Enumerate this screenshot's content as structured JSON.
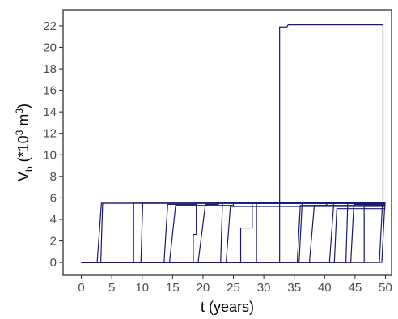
{
  "colors": {
    "series": "#1a1a6e",
    "axis": "#333333",
    "tick_text": "#4d4d4d"
  },
  "chart_data": {
    "type": "line",
    "xlabel": "t (years)",
    "ylabel": {
      "main": "V",
      "sub": "b",
      "rest_prefix": " (*10",
      "sup": "3",
      "rest_mid": " m",
      "sup2": "3",
      "rest_suffix": ")"
    },
    "xlim": [
      -3,
      51
    ],
    "ylim": [
      -1.2,
      23.5
    ],
    "xticks": [
      0,
      5,
      10,
      15,
      20,
      25,
      30,
      35,
      40,
      45,
      50
    ],
    "yticks": [
      0,
      2,
      4,
      6,
      8,
      10,
      12,
      14,
      16,
      18,
      20,
      22
    ],
    "grid": false,
    "legend": "none",
    "series": [
      {
        "x": [
          0,
          3.2,
          3.5,
          8.5,
          8.5,
          50
        ],
        "y": [
          0,
          0,
          5.5,
          5.5,
          5.6,
          5.6
        ]
      },
      {
        "x": [
          0,
          2.6,
          3.3,
          13.5,
          14.0,
          50
        ],
        "y": [
          0,
          0,
          5.5,
          5.5,
          5.5,
          5.5
        ]
      },
      {
        "x": [
          0,
          8.6,
          8.6,
          9.0,
          9.0,
          18.5,
          18.5,
          50
        ],
        "y": [
          0,
          0,
          5.5,
          5.5,
          5.5,
          5.5,
          5.6,
          5.6
        ]
      },
      {
        "x": [
          0,
          9.8,
          10.1,
          20.2,
          20.7,
          50
        ],
        "y": [
          0,
          0,
          5.5,
          5.5,
          5.5,
          5.5
        ]
      },
      {
        "x": [
          0,
          13.6,
          14.2,
          18.8,
          19.0,
          50
        ],
        "y": [
          0,
          0,
          5.4,
          5.4,
          5.5,
          5.5
        ]
      },
      {
        "x": [
          0,
          14.5,
          15.5,
          25.0,
          25.0,
          50
        ],
        "y": [
          0,
          0,
          5.3,
          5.3,
          5.5,
          5.5
        ]
      },
      {
        "x": [
          0,
          18.4,
          18.4,
          18.9,
          18.9,
          50
        ],
        "y": [
          0,
          0,
          2.6,
          2.6,
          5.5,
          5.5
        ]
      },
      {
        "x": [
          0,
          19.2,
          20.4,
          22.5,
          22.7,
          50
        ],
        "y": [
          0,
          0,
          5.4,
          5.4,
          5.5,
          5.5
        ]
      },
      {
        "x": [
          0,
          22.9,
          23.2,
          50
        ],
        "y": [
          0,
          0,
          5.5,
          5.5
        ]
      },
      {
        "x": [
          0,
          23.8,
          24.5,
          50
        ],
        "y": [
          0,
          0,
          5.2,
          5.2
        ]
      },
      {
        "x": [
          0,
          26.2,
          26.2,
          28.1,
          28.1,
          28.4,
          50
        ],
        "y": [
          0,
          0,
          3.2,
          3.2,
          5.5,
          5.5,
          5.5
        ]
      },
      {
        "x": [
          0,
          28.8,
          28.8,
          32.5,
          32.5,
          50
        ],
        "y": [
          0,
          0,
          5.5,
          5.5,
          5.6,
          5.6
        ]
      },
      {
        "x": [
          0,
          32.6,
          32.6,
          33.8,
          34.0,
          49.6,
          49.6,
          50
        ],
        "y": [
          0,
          0,
          21.9,
          21.9,
          22.1,
          22.1,
          5.5,
          5.5
        ]
      },
      {
        "x": [
          0,
          35.5,
          36.0,
          50
        ],
        "y": [
          0,
          0,
          5.3,
          5.3
        ]
      },
      {
        "x": [
          0,
          35.8,
          36.3,
          50
        ],
        "y": [
          0,
          0,
          5.5,
          5.5
        ]
      },
      {
        "x": [
          0,
          37.5,
          38.3,
          40.2,
          40.5,
          50
        ],
        "y": [
          0,
          0,
          5.3,
          5.3,
          5.5,
          5.5
        ]
      },
      {
        "x": [
          0,
          40.8,
          41.5,
          50
        ],
        "y": [
          0,
          0,
          5.5,
          5.5
        ]
      },
      {
        "x": [
          0,
          41.6,
          42.0,
          50
        ],
        "y": [
          0,
          0,
          5.0,
          5.0
        ]
      },
      {
        "x": [
          0,
          43.5,
          43.8,
          50
        ],
        "y": [
          0,
          0,
          5.5,
          5.5
        ]
      },
      {
        "x": [
          0,
          44.3,
          44.8,
          50
        ],
        "y": [
          0,
          0,
          5.4,
          5.4
        ]
      },
      {
        "x": [
          0,
          46.5,
          46.5,
          50
        ],
        "y": [
          0,
          0,
          5.3,
          5.3
        ]
      },
      {
        "x": [
          0,
          49.0,
          49.5,
          50
        ],
        "y": [
          0,
          0,
          5.4,
          5.4
        ]
      },
      {
        "x": [
          0,
          49.4,
          49.9,
          50
        ],
        "y": [
          0,
          0,
          5.5,
          5.5
        ]
      }
    ]
  }
}
